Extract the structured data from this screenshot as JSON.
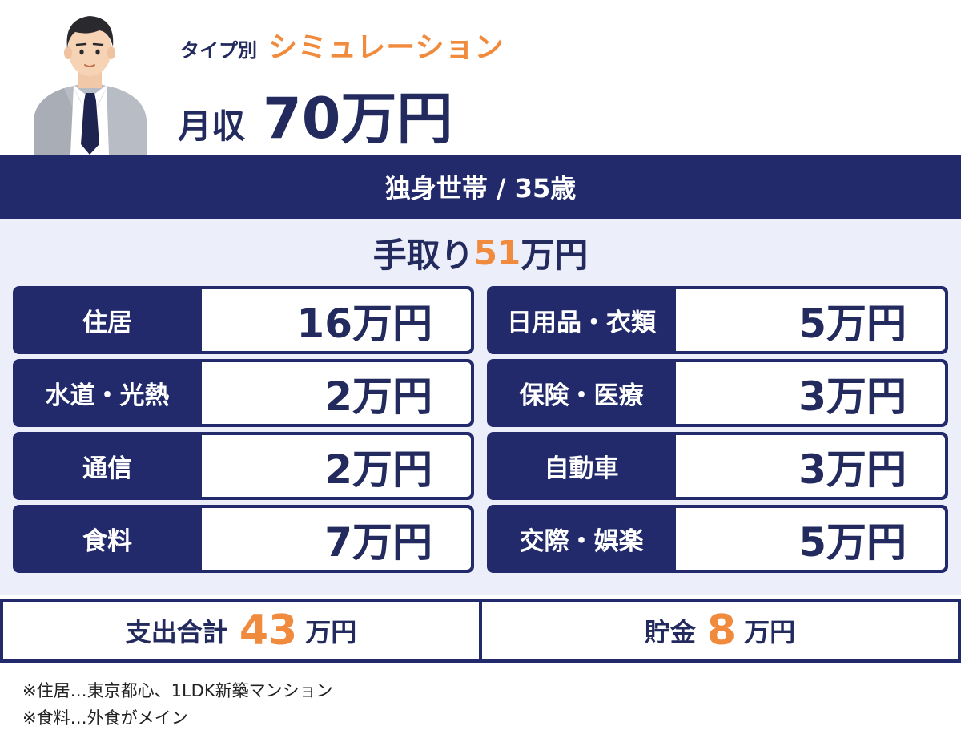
{
  "header": {
    "type_label": "タイプ別",
    "sim_label": "シミュレーション",
    "income_label": "月収",
    "income_value": "70万円"
  },
  "banner": {
    "text": "独身世帯 / 35歳"
  },
  "takehome": {
    "prefix": "手取り",
    "amount": "51",
    "suffix": "万円"
  },
  "expenses": [
    {
      "category": "住居",
      "amount": "16万円"
    },
    {
      "category": "日用品・衣類",
      "amount": "5万円"
    },
    {
      "category": "水道・光熱",
      "amount": "2万円"
    },
    {
      "category": "保険・医療",
      "amount": "3万円"
    },
    {
      "category": "通信",
      "amount": "2万円"
    },
    {
      "category": "自動車",
      "amount": "3万円"
    },
    {
      "category": "食料",
      "amount": "7万円"
    },
    {
      "category": "交際・娯楽",
      "amount": "5万円"
    }
  ],
  "totals": {
    "spend_label": "支出合計",
    "spend_amount": "43",
    "spend_unit": "万円",
    "savings_label": "貯金",
    "savings_amount": "8",
    "savings_unit": "万円"
  },
  "notes": [
    "※住居…東京都心、1LDK新築マンション",
    "※食料…外食がメイン"
  ],
  "colors": {
    "navy": "#222a6b",
    "orange": "#f08a3c",
    "panel_bg": "#eceefa"
  },
  "icons": {
    "avatar": "businessman-illustration"
  }
}
